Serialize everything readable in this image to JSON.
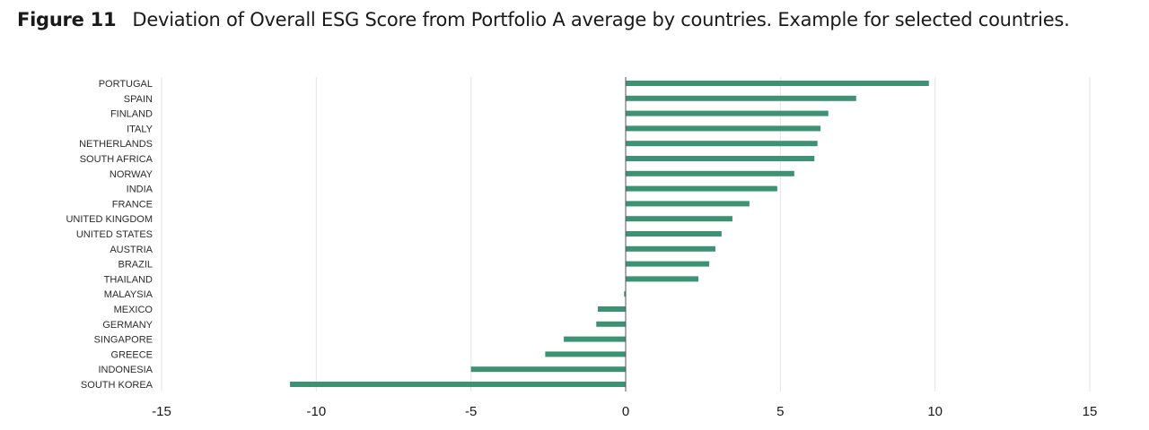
{
  "figure": {
    "number": "Figure 11",
    "caption": "Deviation of Overall ESG Score from Portfolio A average by countries. Example for selected countries."
  },
  "chart_data": {
    "type": "bar",
    "orientation": "horizontal",
    "title": "Deviation of Overall ESG Score from Portfolio A average by countries. Example for selected countries.",
    "xlabel": "",
    "ylabel": "",
    "xlim": [
      -15,
      15
    ],
    "x_ticks": [
      -15,
      -10,
      -5,
      0,
      5,
      10,
      15
    ],
    "grid": "vertical",
    "legend": "none",
    "bar_color": "#3d9273",
    "categories": [
      "PORTUGAL",
      "SPAIN",
      "FINLAND",
      "ITALY",
      "NETHERLANDS",
      "SOUTH AFRICA",
      "NORWAY",
      "INDIA",
      "FRANCE",
      "UNITED KINGDOM",
      "UNITED STATES",
      "AUSTRIA",
      "BRAZIL",
      "THAILAND",
      "MALAYSIA",
      "MEXICO",
      "GERMANY",
      "SINGAPORE",
      "GREECE",
      "INDONESIA",
      "SOUTH KOREA"
    ],
    "values": [
      9.8,
      7.45,
      6.55,
      6.3,
      6.2,
      6.1,
      5.45,
      4.9,
      4.0,
      3.45,
      3.1,
      2.9,
      2.7,
      2.35,
      -0.05,
      -0.9,
      -0.95,
      -2.0,
      -2.6,
      -5.0,
      -10.85
    ]
  }
}
